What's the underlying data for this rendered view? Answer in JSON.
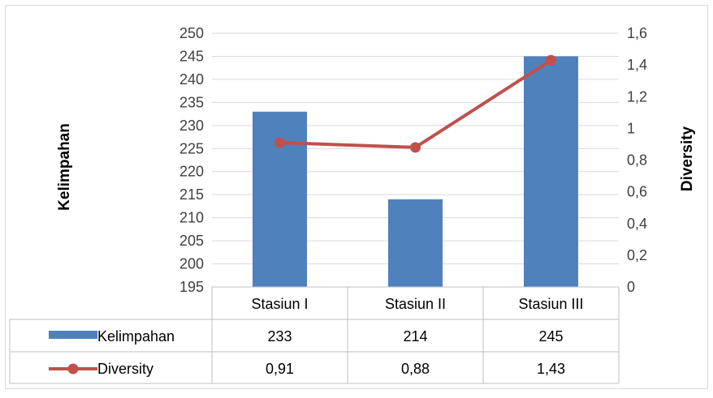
{
  "chart_data": {
    "type": "bar",
    "categories": [
      "Stasiun I",
      "Stasiun II",
      "Stasiun III"
    ],
    "series": [
      {
        "name": "Kelimpahan",
        "kind": "bar",
        "axis": "left",
        "values": [
          233,
          214,
          245
        ],
        "labels": [
          "233",
          "214",
          "245"
        ],
        "color": "#4f81bd"
      },
      {
        "name": "Diversity",
        "kind": "line",
        "axis": "right",
        "values": [
          0.91,
          0.88,
          1.43
        ],
        "labels": [
          "0,91",
          "0,88",
          "1,43"
        ],
        "color": "#c0504d"
      }
    ],
    "ylabel": "Kelimpahan",
    "y2label": "Diversity",
    "ylim": [
      195,
      250
    ],
    "y2lim": [
      0,
      1.6
    ],
    "yticks": [
      "195",
      "200",
      "205",
      "210",
      "215",
      "220",
      "225",
      "230",
      "235",
      "240",
      "245",
      "250"
    ],
    "y2ticks": [
      "0",
      "0,2",
      "0,4",
      "0,6",
      "0,8",
      "1",
      "1,2",
      "1,4",
      "1,6"
    ],
    "grid": true,
    "legend": "data-table"
  }
}
